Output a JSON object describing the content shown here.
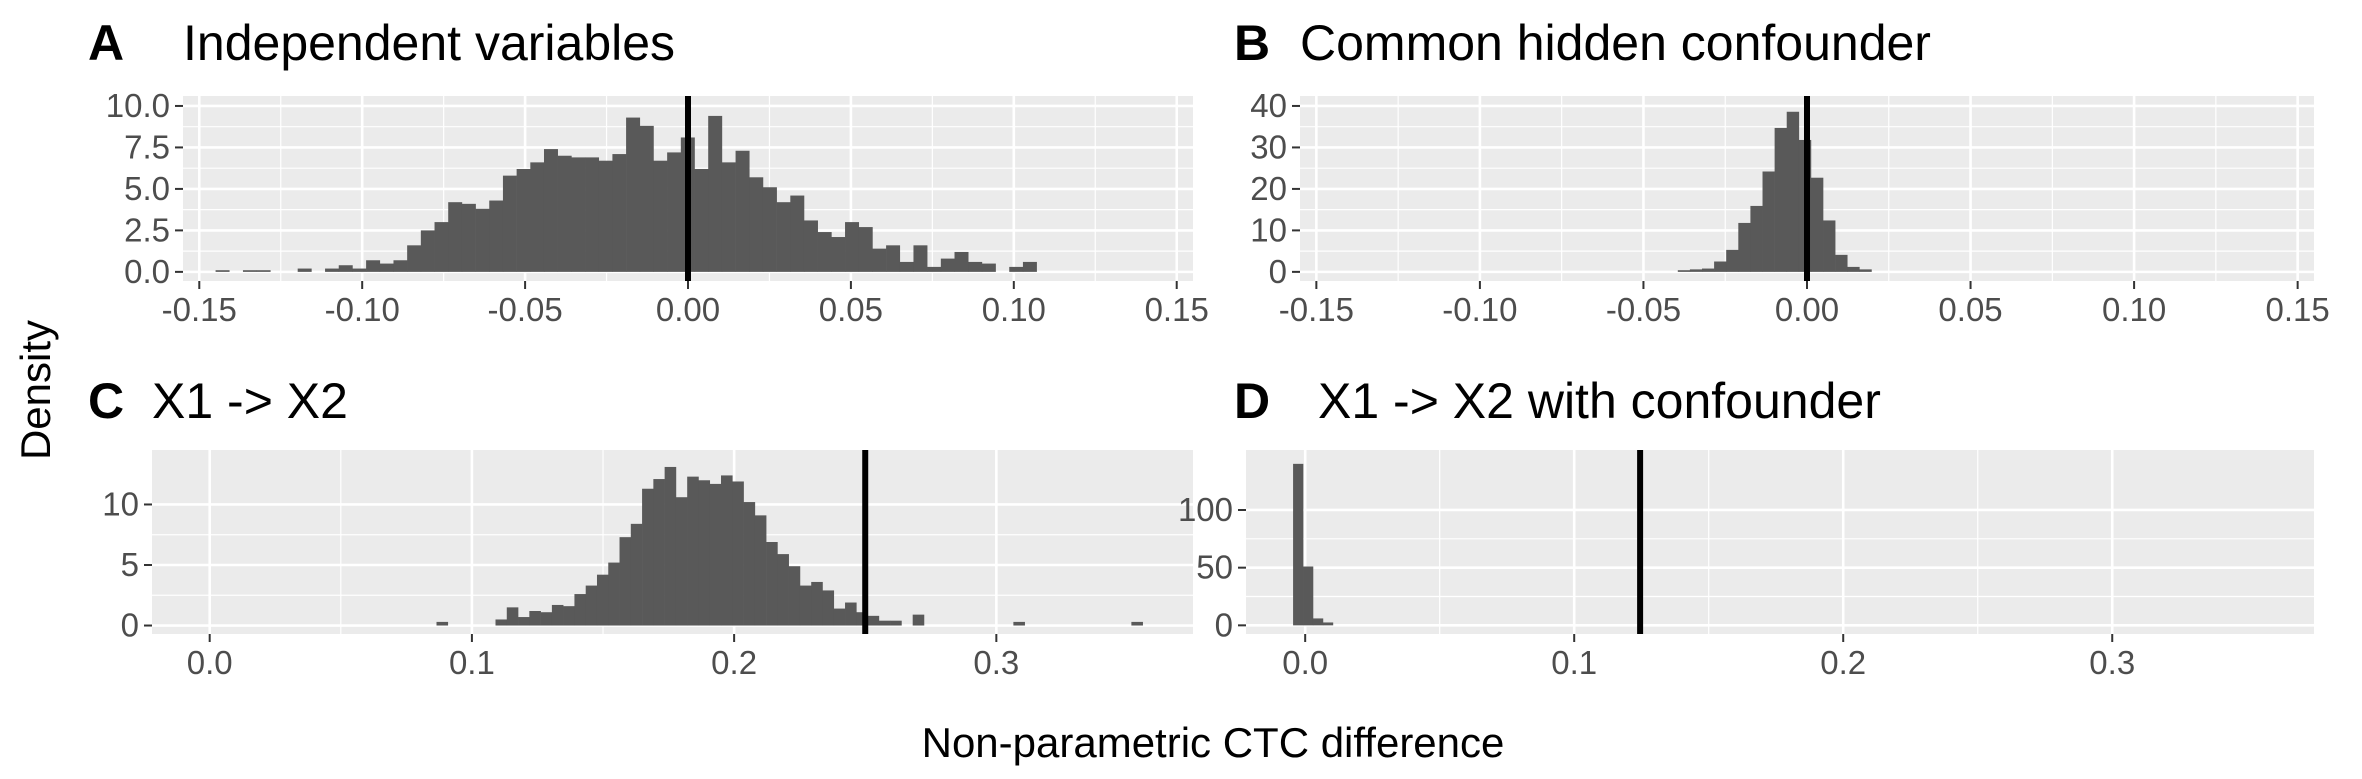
{
  "figure": {
    "xlabel": "Non-parametric CTC difference",
    "ylabel": "Density"
  },
  "colors": {
    "panel_bg": "#ebebeb",
    "grid_major": "#ffffff",
    "bar_fill": "#595959",
    "ref_line": "#000000",
    "tick_text": "#4d4d4d"
  },
  "chart_data": [
    {
      "type": "bar",
      "tag": "A",
      "title": "Independent variables",
      "xlim": [
        -0.155,
        0.155
      ],
      "ylim": [
        -0.55,
        10.6
      ],
      "x_ticks": [
        -0.15,
        -0.1,
        -0.05,
        0.0,
        0.05,
        0.1,
        0.15
      ],
      "x_tick_labels": [
        "-0.15",
        "-0.10",
        "-0.05",
        "0.00",
        "0.05",
        "0.10",
        "0.15"
      ],
      "y_ticks": [
        0,
        2.5,
        5,
        7.5,
        10
      ],
      "y_tick_labels": [
        "0.0",
        "2.5",
        "5.0",
        "7.5",
        "10.0"
      ],
      "bin_start": -0.145,
      "bin_width": 0.0042,
      "values": [
        0.1,
        0,
        0.1,
        0.1,
        0,
        0,
        0.2,
        0,
        0.2,
        0.4,
        0.2,
        0.7,
        0.5,
        0.7,
        1.6,
        2.5,
        3.0,
        4.2,
        4.1,
        3.8,
        4.3,
        5.8,
        6.2,
        6.6,
        7.4,
        7.0,
        6.9,
        6.9,
        6.7,
        7.1,
        9.3,
        8.8,
        6.7,
        7.2,
        8.1,
        6.2,
        9.4,
        6.6,
        7.3,
        5.7,
        5.1,
        4.2,
        4.6,
        3.1,
        2.4,
        2.1,
        3.0,
        2.7,
        1.4,
        1.6,
        0.6,
        1.6,
        0.3,
        0.8,
        1.2,
        0.6,
        0.5,
        0,
        0.3,
        0.6
      ],
      "reference_line": 0.0
    },
    {
      "type": "bar",
      "tag": "B",
      "title": "Common hidden confounder",
      "xlim": [
        -0.155,
        0.155
      ],
      "ylim": [
        -2.2,
        42.4
      ],
      "x_ticks": [
        -0.15,
        -0.1,
        -0.05,
        0.0,
        0.05,
        0.1,
        0.15
      ],
      "x_tick_labels": [
        "-0.15",
        "-0.10",
        "-0.05",
        "0.00",
        "0.05",
        "0.10",
        "0.15"
      ],
      "y_ticks": [
        0,
        10,
        20,
        30,
        40
      ],
      "y_tick_labels": [
        "0",
        "10",
        "20",
        "30",
        "40"
      ],
      "bin_start": -0.0395,
      "bin_width": 0.0037,
      "values": [
        0.4,
        0.6,
        0.8,
        2.5,
        5.3,
        11.8,
        15.9,
        24.2,
        34.7,
        38.6,
        31.8,
        22.7,
        12.4,
        4.1,
        1.2,
        0.6
      ],
      "reference_line": 0.0
    },
    {
      "type": "bar",
      "tag": "C",
      "title": "X1 -> X2",
      "xlim": [
        -0.022,
        0.375
      ],
      "ylim": [
        -0.7,
        14.5
      ],
      "x_ticks": [
        0.0,
        0.1,
        0.2,
        0.3
      ],
      "x_tick_labels": [
        "0.0",
        "0.1",
        "0.2",
        "0.3"
      ],
      "y_ticks": [
        0,
        5,
        10
      ],
      "y_tick_labels": [
        "0",
        "5",
        "10"
      ],
      "bin_start": 0.109,
      "bin_width": 0.0043,
      "values": [
        0.5,
        1.5,
        0.7,
        1.2,
        1.1,
        1.7,
        1.6,
        2.6,
        3.3,
        4.2,
        5.2,
        7.3,
        8.4,
        11.3,
        12.1,
        13.1,
        10.6,
        12.3,
        12.0,
        11.7,
        12.4,
        11.9,
        10.2,
        9.1,
        6.9,
        5.9,
        4.9,
        3.3,
        3.6,
        2.9,
        1.4,
        1.9,
        1.1,
        0.8,
        0.4,
        0.4,
        0,
        0.9
      ],
      "extra_bins": [
        {
          "x0": 0.0865,
          "value": 0.3
        },
        {
          "x0": 0.3065,
          "value": 0.3
        },
        {
          "x0": 0.3515,
          "value": 0.3
        }
      ],
      "reference_line": 0.25
    },
    {
      "type": "bar",
      "tag": "D",
      "title": "X1 -> X2 with confounder",
      "xlim": [
        -0.022,
        0.375
      ],
      "ylim": [
        -7.5,
        152
      ],
      "x_ticks": [
        0.0,
        0.1,
        0.2,
        0.3
      ],
      "x_tick_labels": [
        "0.0",
        "0.1",
        "0.2",
        "0.3"
      ],
      "y_ticks": [
        0,
        50,
        100
      ],
      "y_tick_labels": [
        "0",
        "50",
        "100"
      ],
      "bin_start": -0.0045,
      "bin_width": 0.0037,
      "values": [
        140,
        51,
        6,
        2.5
      ],
      "reference_line": 0.1245
    }
  ]
}
